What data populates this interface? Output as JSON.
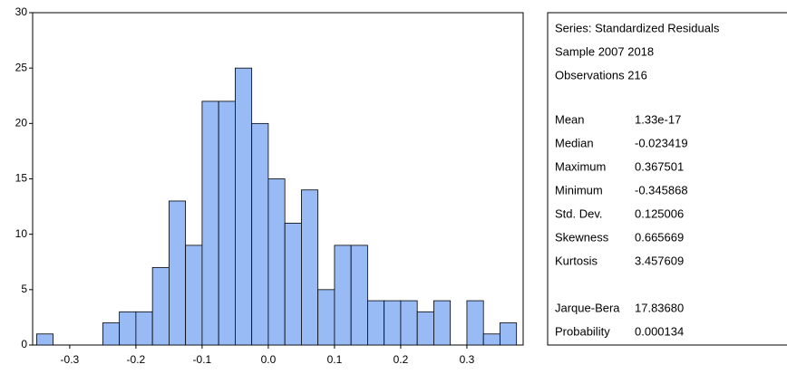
{
  "chart_data": {
    "type": "histogram",
    "bins": [
      -0.35,
      -0.325,
      -0.3,
      -0.275,
      -0.25,
      -0.225,
      -0.2,
      -0.175,
      -0.15,
      -0.125,
      -0.1,
      -0.075,
      -0.05,
      -0.025,
      0,
      0.025,
      0.05,
      0.075,
      0.1,
      0.125,
      0.15,
      0.175,
      0.2,
      0.225,
      0.25,
      0.275,
      0.3,
      0.325,
      0.35,
      0.375
    ],
    "values": [
      1,
      0,
      0,
      0,
      2,
      3,
      3,
      7,
      13,
      9,
      22,
      22,
      25,
      20,
      15,
      11,
      14,
      5,
      9,
      9,
      4,
      4,
      4,
      3,
      4,
      0,
      4,
      1,
      2
    ],
    "color": "#99bbf5",
    "xlim": [
      -0.356,
      0.385
    ],
    "xticks": [
      -0.3,
      -0.2,
      -0.1,
      {
        "value": 0,
        "label": "0.0"
      },
      0.1,
      0.2,
      0.3
    ],
    "ylim": [
      0,
      30
    ],
    "yticks": [
      0,
      5,
      10,
      15,
      20,
      25,
      30
    ],
    "stats_header": [
      "Series: Standardized Residuals",
      "Sample 2007 2018",
      "Observations 216"
    ],
    "stats": [
      {
        "label": "Mean",
        "value": "1.33e-17"
      },
      {
        "label": "Median",
        "value": "-0.023419"
      },
      {
        "label": "Maximum",
        "value": "0.367501"
      },
      {
        "label": "Minimum",
        "value": "-0.345868"
      },
      {
        "label": "Std. Dev.",
        "value": "0.125006"
      },
      {
        "label": "Skewness",
        "value": "0.665669"
      },
      {
        "label": "Kurtosis",
        "value": "3.457609"
      }
    ],
    "test_stats": [
      {
        "label": "Jarque-Bera",
        "value": "17.83680"
      },
      {
        "label": "Probability",
        "value": "0.000134"
      }
    ]
  }
}
